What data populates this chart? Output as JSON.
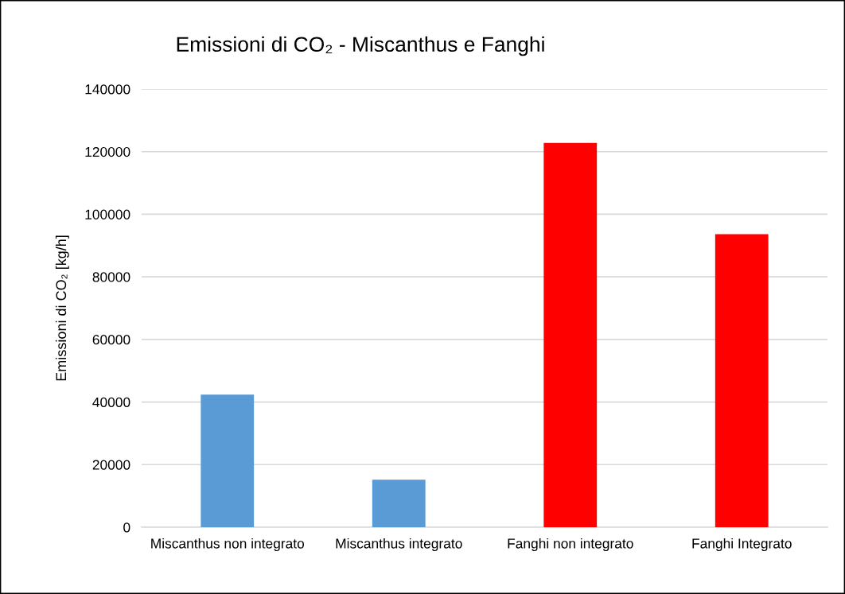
{
  "chart_data": {
    "type": "bar",
    "title": "Emissioni di CO₂ - Miscanthus e Fanghi",
    "ylabel": "Emissioni di CO₂ [kg/h]",
    "categories": [
      "Miscanthus non integrato",
      "Miscanthus integrato",
      "Fanghi non integrato",
      "Fanghi Integrato"
    ],
    "values": [
      42400,
      15200,
      122800,
      93600
    ],
    "colors": [
      "#5b9bd5",
      "#5b9bd5",
      "#ff0000",
      "#ff0000"
    ],
    "ylim": [
      0,
      140000
    ],
    "yticks": [
      0,
      20000,
      40000,
      60000,
      80000,
      100000,
      120000,
      140000
    ],
    "grid": "y",
    "legend": false
  }
}
